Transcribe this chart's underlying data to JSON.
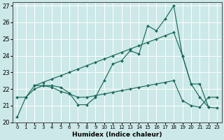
{
  "xlabel": "Humidex (Indice chaleur)",
  "background_color": "#cce8e8",
  "line_color": "#1a6b5a",
  "grid_color": "#ffffff",
  "xlim": [
    -0.5,
    23.5
  ],
  "ylim": [
    20,
    27.2
  ],
  "yticks": [
    20,
    21,
    22,
    23,
    24,
    25,
    26,
    27
  ],
  "xticks": [
    0,
    1,
    2,
    3,
    4,
    5,
    6,
    7,
    8,
    9,
    10,
    11,
    12,
    13,
    14,
    15,
    16,
    17,
    18,
    19,
    20,
    21,
    22,
    23
  ],
  "series": [
    {
      "x": [
        0,
        1,
        2,
        3,
        4,
        5,
        6,
        7,
        8,
        9,
        10,
        11,
        12,
        13,
        14,
        15,
        16,
        17,
        18,
        19,
        20,
        21,
        22
      ],
      "y": [
        20.3,
        21.5,
        22.2,
        22.2,
        22.2,
        22.1,
        21.75,
        21.05,
        21.05,
        21.5,
        22.5,
        23.5,
        23.7,
        24.3,
        24.1,
        25.8,
        25.5,
        26.2,
        27.0,
        24.0,
        22.3,
        22.3,
        20.9
      ]
    },
    {
      "x": [
        2,
        3,
        4,
        5,
        6,
        7,
        8,
        9,
        10,
        11,
        12,
        13,
        14,
        15,
        16,
        17,
        18,
        19,
        20,
        21,
        22,
        23
      ],
      "y": [
        22.2,
        22.4,
        22.6,
        22.8,
        23.0,
        23.2,
        23.4,
        23.6,
        23.8,
        24.0,
        24.2,
        24.4,
        24.6,
        24.8,
        25.0,
        25.2,
        25.4,
        24.0,
        22.3,
        21.5,
        20.9,
        20.85
      ]
    },
    {
      "x": [
        0,
        1,
        2,
        3,
        4,
        5,
        6,
        7,
        8,
        9,
        10,
        11,
        12,
        13,
        14,
        15,
        16,
        17,
        18,
        19,
        20,
        21,
        22,
        23
      ],
      "y": [
        21.5,
        21.5,
        22.0,
        22.2,
        22.1,
        21.85,
        21.7,
        21.5,
        21.5,
        21.6,
        21.7,
        21.8,
        21.9,
        22.0,
        22.1,
        22.2,
        22.3,
        22.4,
        22.5,
        21.3,
        21.0,
        20.9,
        21.5,
        21.5
      ]
    }
  ]
}
